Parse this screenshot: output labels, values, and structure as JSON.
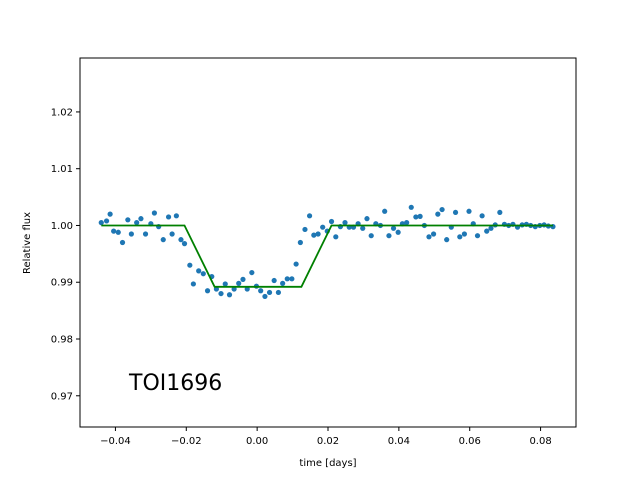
{
  "chart_data": {
    "type": "scatter",
    "xlabel": "time [days]",
    "ylabel": "Relative flux",
    "annotation": "TOI1696",
    "xlim": [
      -0.05,
      0.09
    ],
    "ylim": [
      0.9645,
      1.0295
    ],
    "xticks": [
      -0.04,
      -0.02,
      0.0,
      0.02,
      0.04,
      0.06,
      0.08
    ],
    "xtick_labels": [
      "−0.04",
      "−0.02",
      "0.00",
      "0.02",
      "0.04",
      "0.06",
      "0.08"
    ],
    "yticks": [
      0.97,
      0.98,
      0.99,
      1.0,
      1.01,
      1.02
    ],
    "ytick_labels": [
      "0.97",
      "0.98",
      "0.99",
      "1.00",
      "1.01",
      "1.02"
    ],
    "grid": false,
    "colors": {
      "points": "#1f77b4",
      "model": "#008000"
    },
    "series": [
      {
        "kind": "points",
        "x": [
          -0.044,
          -0.0425,
          -0.0415,
          -0.0405,
          -0.0392,
          -0.038,
          -0.0365,
          -0.0355,
          -0.034,
          -0.0328,
          -0.0315,
          -0.03,
          -0.029,
          -0.0278,
          -0.0265,
          -0.025,
          -0.024,
          -0.0228,
          -0.0215,
          -0.0205,
          -0.019,
          -0.018,
          -0.0165,
          -0.0152,
          -0.014,
          -0.0128,
          -0.0115,
          -0.0102,
          -0.009,
          -0.0078,
          -0.0065,
          -0.0052,
          -0.004,
          -0.0028,
          -0.0015,
          -0.0002,
          0.001,
          0.0022,
          0.0035,
          0.0048,
          0.006,
          0.0072,
          0.0085,
          0.0098,
          0.011,
          0.0122,
          0.0135,
          0.0148,
          0.016,
          0.0172,
          0.0185,
          0.0198,
          0.021,
          0.0222,
          0.0235,
          0.0248,
          0.026,
          0.0272,
          0.0285,
          0.0298,
          0.031,
          0.0322,
          0.0335,
          0.0348,
          0.036,
          0.0372,
          0.0385,
          0.0398,
          0.041,
          0.0422,
          0.0435,
          0.0448,
          0.046,
          0.0472,
          0.0485,
          0.0498,
          0.051,
          0.0522,
          0.0535,
          0.0548,
          0.056,
          0.0572,
          0.0585,
          0.0598,
          0.061,
          0.0622,
          0.0635,
          0.0648,
          0.066,
          0.0672,
          0.0685,
          0.0698,
          0.071,
          0.0722,
          0.0735,
          0.0748,
          0.076,
          0.0772,
          0.0785,
          0.0798,
          0.081,
          0.0822,
          0.0835
        ],
        "y": [
          1.0005,
          1.0008,
          1.002,
          0.999,
          0.9988,
          0.997,
          1.001,
          0.9985,
          1.0005,
          1.0012,
          0.9985,
          1.0003,
          1.0022,
          0.9998,
          0.9975,
          1.0015,
          0.9985,
          1.0017,
          0.9975,
          0.9968,
          0.993,
          0.9897,
          0.992,
          0.9915,
          0.9885,
          0.991,
          0.9888,
          0.988,
          0.9897,
          0.9878,
          0.9888,
          0.9898,
          0.9905,
          0.9888,
          0.9917,
          0.9893,
          0.9885,
          0.9875,
          0.9882,
          0.9903,
          0.9882,
          0.9898,
          0.9906,
          0.9906,
          0.9932,
          0.997,
          0.9993,
          1.0017,
          0.9983,
          0.9985,
          0.9997,
          0.999,
          1.0007,
          0.998,
          0.9998,
          1.0005,
          0.9997,
          0.9997,
          1.0003,
          0.9995,
          1.0012,
          0.9982,
          1.0003,
          1.0,
          1.0025,
          0.9982,
          0.9995,
          0.9988,
          1.0003,
          1.0005,
          1.0032,
          1.0015,
          1.0016,
          1.0,
          0.998,
          0.9985,
          1.002,
          1.0028,
          0.9975,
          0.9997,
          1.0023,
          0.998,
          0.9985,
          1.0025,
          1.0003,
          0.9982,
          1.0017,
          0.999,
          0.9995,
          1.0001,
          1.0023,
          1.0002,
          1.0,
          1.0002,
          0.9997,
          1.0001,
          1.0002,
          1.0,
          0.9998,
          1.0,
          1.0001,
          0.9999,
          0.9998
        ]
      },
      {
        "kind": "model",
        "x": [
          -0.044,
          -0.0205,
          -0.012,
          0.0125,
          0.021,
          0.0835
        ],
        "y": [
          1.0,
          1.0,
          0.9892,
          0.9892,
          1.0,
          1.0
        ]
      }
    ]
  }
}
